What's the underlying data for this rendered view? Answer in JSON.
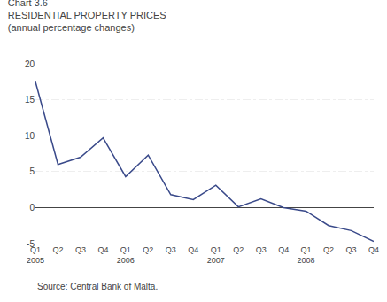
{
  "chart_data": {
    "type": "line",
    "title": "Chart 3.6",
    "subtitle": [
      "RESIDENTIAL PROPERTY PRICES",
      "(annual percentage changes)"
    ],
    "annotations": [
      "Source: Central Bank of Malta."
    ],
    "categories": [
      "Q1\n2005",
      "Q2",
      "Q3",
      "Q4",
      "Q1\n2006",
      "Q2",
      "Q3",
      "Q4",
      "Q1\n2007",
      "Q2",
      "Q3",
      "Q4",
      "Q1\n2008",
      "Q2",
      "Q3",
      "Q4"
    ],
    "values": [
      17.5,
      6.0,
      7.0,
      9.7,
      4.3,
      7.3,
      1.8,
      1.1,
      3.1,
      0.1,
      1.2,
      0.0,
      -0.5,
      -2.5,
      -3.2,
      -4.7
    ],
    "color": "#3A4A8A",
    "ylim": [
      -5,
      20
    ],
    "yticks": [
      -5,
      0,
      5,
      10,
      15,
      20
    ],
    "grid": true
  }
}
